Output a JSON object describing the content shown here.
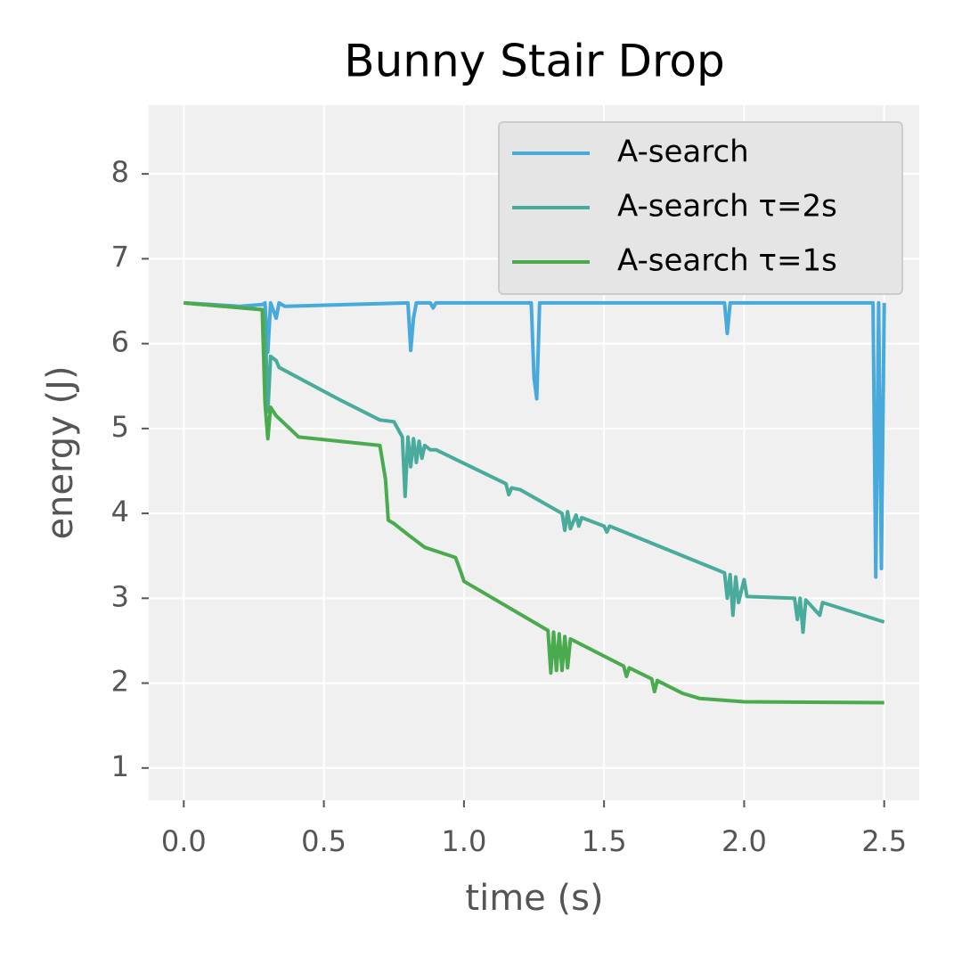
{
  "chart_data": {
    "type": "line",
    "title": "Bunny Stair Drop",
    "xlabel": "time (s)",
    "ylabel": "energy (J)",
    "xlim": [
      -0.125,
      2.625
    ],
    "ylim": [
      0.62,
      8.81
    ],
    "xticks": [
      {
        "value": 0,
        "label": "0.0"
      },
      {
        "value": 0.5,
        "label": "0.5"
      },
      {
        "value": 1,
        "label": "1.0"
      },
      {
        "value": 1.5,
        "label": "1.5"
      },
      {
        "value": 2,
        "label": "2.0"
      },
      {
        "value": 2.5,
        "label": "2.5"
      }
    ],
    "yticks": [
      1,
      2,
      3,
      4,
      5,
      6,
      7,
      8
    ],
    "grid": true,
    "legend": "upper right",
    "series": [
      {
        "name": "A-search",
        "color": "#48a9dc",
        "x": [
          0,
          0.1,
          0.2,
          0.28,
          0.29,
          0.3,
          0.31,
          0.33,
          0.34,
          0.36,
          0.8,
          0.81,
          0.82,
          0.83,
          0.88,
          0.89,
          0.9,
          1.24,
          1.25,
          1.26,
          1.27,
          1.93,
          1.94,
          1.95,
          2.46,
          2.47,
          2.48,
          2.49,
          2.5
        ],
        "values": [
          6.48,
          6.46,
          6.44,
          6.46,
          6.48,
          5.9,
          6.48,
          6.3,
          6.48,
          6.44,
          6.48,
          5.92,
          6.3,
          6.48,
          6.48,
          6.42,
          6.48,
          6.48,
          5.6,
          5.35,
          6.48,
          6.48,
          6.12,
          6.48,
          6.48,
          3.25,
          6.48,
          3.35,
          6.48
        ]
      },
      {
        "name": "A-search τ=2s",
        "color": "#49ab9b",
        "x": [
          0,
          0.28,
          0.29,
          0.3,
          0.31,
          0.33,
          0.34,
          0.55,
          0.7,
          0.75,
          0.78,
          0.79,
          0.8,
          0.81,
          0.82,
          0.83,
          0.84,
          0.85,
          0.86,
          0.88,
          0.9,
          1.15,
          1.16,
          1.17,
          1.2,
          1.35,
          1.36,
          1.37,
          1.38,
          1.4,
          1.41,
          1.42,
          1.5,
          1.51,
          1.52,
          1.93,
          1.94,
          1.95,
          1.96,
          1.97,
          1.98,
          2.0,
          2.01,
          2.18,
          2.19,
          2.2,
          2.21,
          2.22,
          2.27,
          2.28,
          2.5
        ],
        "values": [
          6.48,
          6.4,
          6.3,
          5.2,
          5.85,
          5.8,
          5.72,
          5.35,
          5.1,
          5.08,
          4.9,
          4.2,
          4.9,
          4.55,
          4.88,
          4.6,
          4.85,
          4.65,
          4.8,
          4.75,
          4.75,
          4.35,
          4.22,
          4.3,
          4.28,
          4.0,
          3.8,
          4.02,
          3.82,
          3.98,
          3.85,
          3.95,
          3.85,
          3.78,
          3.85,
          3.3,
          3.0,
          3.28,
          2.8,
          3.25,
          2.95,
          3.22,
          3.02,
          3.0,
          2.75,
          3.0,
          2.6,
          2.98,
          2.8,
          2.95,
          2.72
        ]
      },
      {
        "name": "A-search τ=1s",
        "color": "#4aaa4e",
        "x": [
          0,
          0.28,
          0.29,
          0.3,
          0.31,
          0.33,
          0.41,
          0.7,
          0.72,
          0.73,
          0.75,
          0.8,
          0.86,
          0.97,
          0.99,
          1.0,
          1.3,
          1.31,
          1.32,
          1.33,
          1.34,
          1.35,
          1.36,
          1.37,
          1.38,
          1.57,
          1.58,
          1.59,
          1.67,
          1.68,
          1.69,
          1.78,
          1.84,
          2.0,
          2.5
        ],
        "values": [
          6.48,
          6.4,
          5.3,
          4.88,
          5.25,
          5.15,
          4.9,
          4.8,
          4.4,
          3.92,
          3.88,
          3.75,
          3.6,
          3.48,
          3.3,
          3.2,
          2.62,
          2.12,
          2.6,
          2.15,
          2.58,
          2.15,
          2.55,
          2.18,
          2.52,
          2.2,
          2.08,
          2.18,
          2.05,
          1.9,
          2.03,
          1.88,
          1.82,
          1.78,
          1.77
        ]
      }
    ]
  }
}
